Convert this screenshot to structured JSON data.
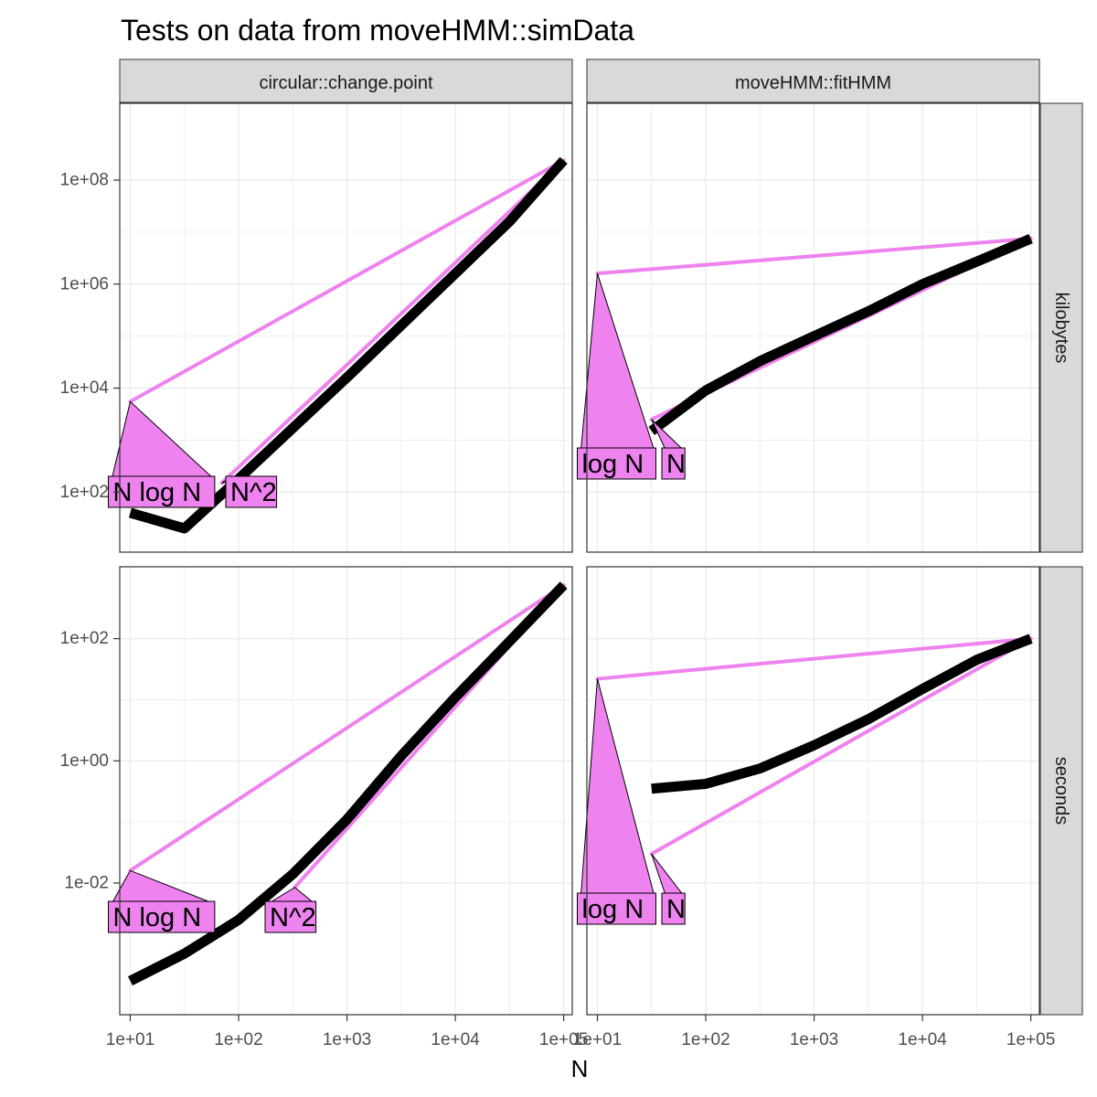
{
  "chart_data": {
    "type": "line",
    "title": "Tests on data from moveHMM::simData",
    "xlabel": "N",
    "x_scale": "log10",
    "xlim": [
      8,
      120000
    ],
    "x_ticks": [
      10,
      100,
      1000,
      10000,
      100000
    ],
    "x_tick_labels": [
      "1e+01",
      "1e+02",
      "1e+03",
      "1e+04",
      "1e+05"
    ],
    "columns": [
      "circular::change.point",
      "moveHMM::fitHMM"
    ],
    "rows": [
      "kilobytes",
      "seconds"
    ],
    "colors": {
      "reference": "#ee82ee",
      "empirical": "#000000",
      "strip_bg": "#d9d9d9",
      "grid": "#ebebeb"
    },
    "facet_rows": [
      {
        "name": "kilobytes",
        "y_scale": "log10",
        "ylim": [
          7,
          3000000000
        ],
        "y_ticks": [
          100,
          10000,
          1000000,
          100000000
        ],
        "y_tick_labels": [
          "1e+02",
          "1e+04",
          "1e+06",
          "1e+08"
        ]
      },
      {
        "name": "seconds",
        "y_scale": "log10",
        "ylim": [
          7e-05,
          1500
        ],
        "y_ticks": [
          0.01,
          1,
          100
        ],
        "y_tick_labels": [
          "1e-02",
          "1e+00",
          "1e+02"
        ]
      }
    ],
    "panels": [
      {
        "row": "kilobytes",
        "column": "circular::change.point",
        "empirical": {
          "x": [
            10,
            31.6,
            100,
            316,
            1000,
            3162,
            10000,
            31623,
            100000
          ],
          "y": [
            40,
            20,
            180,
            1700,
            16000,
            160000,
            1600000,
            16000000,
            240000000
          ]
        },
        "references": [
          {
            "label": "N log N",
            "x": [
              10,
              100000
            ],
            "y": [
              5500,
              240000000
            ]
          },
          {
            "label": "N^2",
            "x": [
              70,
              100000
            ],
            "y": [
              150,
              240000000
            ]
          }
        ]
      },
      {
        "row": "kilobytes",
        "column": "moveHMM::fitHMM",
        "empirical": {
          "x": [
            31.6,
            100,
            316,
            1000,
            3162,
            10000,
            31623,
            100000
          ],
          "y": [
            1500,
            9000,
            33000,
            100000,
            300000,
            1000000,
            2700000,
            7500000
          ]
        },
        "references": [
          {
            "label": "log N",
            "x": [
              10,
              100000
            ],
            "y": [
              1600000,
              7500000
            ]
          },
          {
            "label": "N",
            "x": [
              31.6,
              100000
            ],
            "y": [
              2500,
              7500000
            ]
          }
        ]
      },
      {
        "row": "seconds",
        "column": "circular::change.point",
        "empirical": {
          "x": [
            10,
            31.6,
            100,
            316,
            1000,
            3162,
            10000,
            31623,
            100000
          ],
          "y": [
            0.00025,
            0.0007,
            0.0025,
            0.014,
            0.11,
            1.2,
            11,
            90,
            750
          ]
        },
        "references": [
          {
            "label": "N log N",
            "x": [
              10,
              100000
            ],
            "y": [
              0.016,
              750
            ]
          },
          {
            "label": "N^2",
            "x": [
              330,
              100000
            ],
            "y": [
              0.0085,
              750
            ]
          }
        ]
      },
      {
        "row": "seconds",
        "column": "moveHMM::fitHMM",
        "empirical": {
          "x": [
            31.6,
            100,
            316,
            1000,
            3162,
            10000,
            31623,
            100000
          ],
          "y": [
            0.35,
            0.42,
            0.75,
            1.8,
            4.8,
            15,
            45,
            100
          ]
        },
        "references": [
          {
            "label": "log N",
            "x": [
              10,
              100000
            ],
            "y": [
              22,
              100
            ]
          },
          {
            "label": "N",
            "x": [
              31.6,
              100000
            ],
            "y": [
              0.03,
              100
            ]
          }
        ]
      }
    ]
  }
}
